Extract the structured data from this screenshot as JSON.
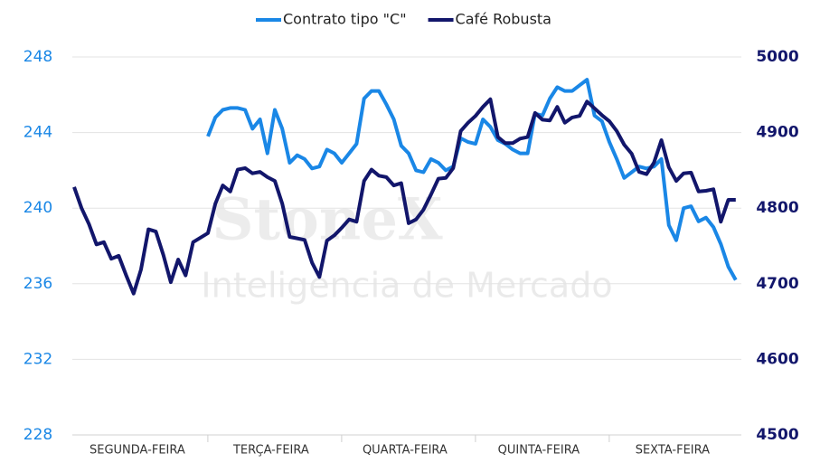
{
  "chart_data": {
    "type": "line",
    "watermark": [
      "StoneX",
      "Inteligencia de Mercado"
    ],
    "categories": [
      null,
      null,
      null,
      null,
      null,
      null,
      null,
      null,
      null,
      "SEGUNDA-FEIRA",
      null,
      null,
      null,
      null,
      null,
      null,
      null,
      null,
      null,
      null,
      null,
      null,
      null,
      null,
      null,
      null,
      null,
      "TERÇA-FEIRA",
      null,
      null,
      null,
      null,
      null,
      null,
      null,
      null,
      null,
      null,
      null,
      null,
      null,
      null,
      null,
      null,
      null,
      "QUARTA-FEIRA",
      null,
      null,
      null,
      null,
      null,
      null,
      null,
      null,
      null,
      null,
      null,
      null,
      null,
      null,
      null,
      null,
      null,
      "QUINTA-FEIRA",
      null,
      null,
      null,
      null,
      null,
      null,
      null,
      null,
      null,
      null,
      null,
      null,
      null,
      null,
      null,
      null,
      null,
      "SEXTA-FEIRA",
      null,
      null,
      null,
      null,
      null,
      null,
      null,
      null
    ],
    "series": [
      {
        "name": "Contrato tipo \"C\"",
        "color": "#1a87e6",
        "values": [
          null,
          null,
          null,
          null,
          null,
          null,
          null,
          null,
          null,
          null,
          null,
          null,
          null,
          null,
          null,
          null,
          null,
          null,
          243.8,
          244.8,
          245.2,
          245.3,
          245.3,
          245.2,
          244.2,
          244.7,
          242.9,
          245.2,
          244.2,
          242.4,
          242.8,
          242.6,
          242.1,
          242.2,
          243.1,
          242.9,
          242.4,
          242.9,
          243.4,
          245.8,
          246.2,
          246.2,
          245.5,
          244.7,
          243.3,
          242.9,
          242.0,
          241.9,
          242.6,
          242.4,
          242.0,
          242.2,
          243.7,
          243.5,
          243.4,
          244.7,
          244.3,
          243.6,
          243.4,
          243.1,
          242.9,
          242.9,
          245.0,
          244.9,
          245.8,
          246.4,
          246.2,
          246.2,
          246.5,
          246.8,
          244.9,
          244.6,
          243.5,
          242.6,
          241.6,
          241.9,
          242.2,
          242.1,
          242.2,
          242.6,
          239.1,
          238.3,
          240.0,
          240.1,
          239.3,
          239.5,
          239.0,
          238.1,
          236.9,
          236.2
        ]
      },
      {
        "name": "Café Robusta",
        "color": "#12166b",
        "axis": "y2",
        "values": [
          4828,
          4800,
          4779,
          4752,
          4755,
          4733,
          4737,
          4711,
          4687,
          4719,
          4772,
          4769,
          4738,
          4702,
          4732,
          4711,
          4755,
          4761,
          4767,
          4806,
          4830,
          4822,
          4851,
          4853,
          4846,
          4848,
          4841,
          4836,
          4806,
          4762,
          4760,
          4758,
          4728,
          4709,
          4757,
          4764,
          4774,
          4785,
          4782,
          4836,
          4851,
          4843,
          4841,
          4830,
          4833,
          4780,
          4785,
          4798,
          4818,
          4839,
          4840,
          4853,
          4902,
          4913,
          4922,
          4934,
          4944,
          4894,
          4886,
          4886,
          4892,
          4894,
          4926,
          4917,
          4916,
          4934,
          4913,
          4920,
          4922,
          4941,
          4932,
          4923,
          4915,
          4902,
          4884,
          4872,
          4848,
          4845,
          4860,
          4890,
          4854,
          4836,
          4846,
          4847,
          4822,
          4823,
          4825,
          4782,
          4811,
          4811
        ]
      }
    ],
    "ylim": [
      228,
      248
    ],
    "yticks": [
      228,
      232,
      236,
      240,
      244,
      248
    ],
    "y2lim": [
      4500,
      5000
    ],
    "y2ticks": [
      4500,
      4600,
      4700,
      4800,
      4900,
      5000
    ],
    "grid": true,
    "legend": "top"
  }
}
